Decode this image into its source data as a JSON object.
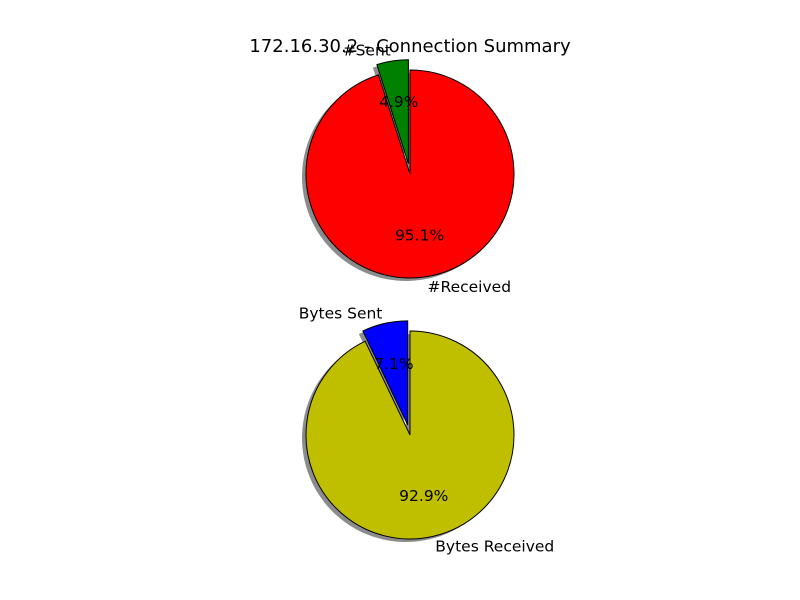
{
  "title": "172.16.30.2 - Connection Summary",
  "chart_data": [
    {
      "type": "pie",
      "categories": [
        "#Sent",
        "#Received"
      ],
      "values": [
        4.9,
        95.1
      ],
      "unit": "%",
      "value_labels": [
        "4.9%",
        "95.1%"
      ],
      "colors": [
        "#008000",
        "#ff0000"
      ],
      "explode": [
        true,
        false
      ],
      "shadow": true,
      "start_angle_deg": 90,
      "direction": "counterclockwise"
    },
    {
      "type": "pie",
      "categories": [
        "Bytes Sent",
        "Bytes Received"
      ],
      "values": [
        7.1,
        92.9
      ],
      "unit": "%",
      "value_labels": [
        "7.1%",
        "92.9%"
      ],
      "colors": [
        "#0000ff",
        "#bfbf00"
      ],
      "explode": [
        true,
        false
      ],
      "shadow": true,
      "start_angle_deg": 90,
      "direction": "counterclockwise"
    }
  ]
}
